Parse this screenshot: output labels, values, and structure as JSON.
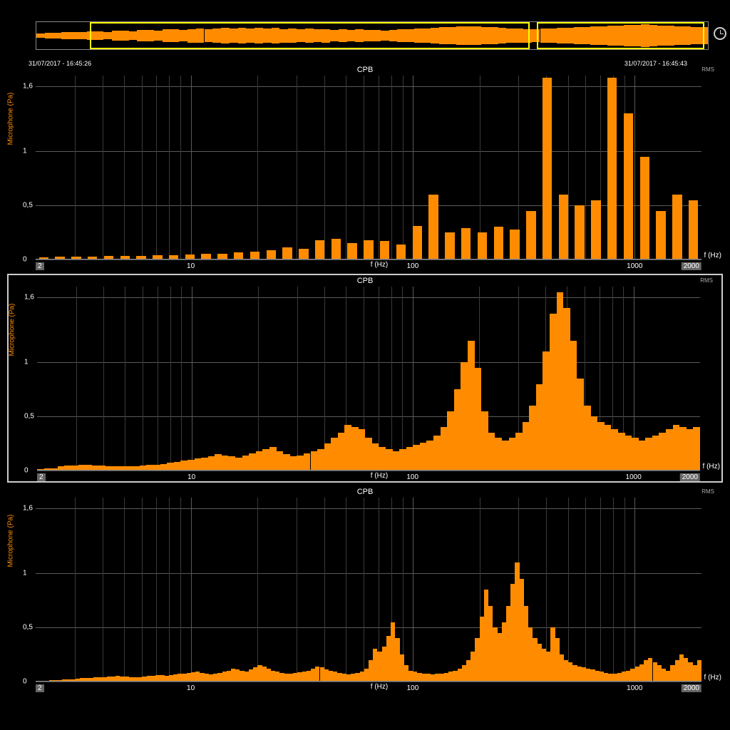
{
  "colors": {
    "background": "#000000",
    "bar": "#ff8c00",
    "grid": "#5a5a5a",
    "grid_minor": "#3a3a3a",
    "text": "#ffffff",
    "axis_label": "#ff8c00",
    "panel_border": "#888888",
    "selection": "#ffff00",
    "highlight_border": "#cccccc",
    "xtick_box": "#666666"
  },
  "timeline": {
    "timestamp_left": "31/07/2017 - 16:45:26",
    "timestamp_right": "31/07/2017 - 16:45:43",
    "selection_boxes": [
      {
        "left_pct": 8,
        "width_pct": 65.5
      },
      {
        "left_pct": 74.5,
        "width_pct": 25
      }
    ],
    "waveform_heights_pct": [
      18,
      22,
      20,
      25,
      28,
      24,
      30,
      32,
      28,
      35,
      38,
      34,
      40,
      42,
      38,
      45,
      48,
      44,
      50,
      52,
      48,
      55,
      58,
      54,
      60,
      55,
      58,
      52,
      56,
      50,
      54,
      48,
      52,
      46,
      50,
      44,
      48,
      42,
      46,
      40,
      44,
      38,
      42,
      45,
      48,
      52,
      55,
      58,
      62,
      65,
      68,
      70,
      68,
      65,
      62,
      58,
      55,
      52,
      50,
      48,
      52,
      55,
      58,
      60,
      62,
      65,
      68,
      70,
      72,
      75,
      78,
      80,
      82,
      78,
      75,
      72,
      70,
      68,
      65,
      62
    ],
    "waveform_color": "#ff8c00"
  },
  "charts": [
    {
      "type": "bar",
      "title": "CPB",
      "rms_label": "RMS",
      "ylabel": "Microphone (Pa)",
      "xlabel": "f (Hz)",
      "xlabel_right": "f (Hz)",
      "highlighted": false,
      "ylim": [
        0,
        1.7
      ],
      "yticks": [
        0,
        0.5,
        1,
        1.6
      ],
      "ytick_labels": [
        "0",
        "0,5",
        "1",
        "1,6"
      ],
      "xscale": "log",
      "xlim": [
        2,
        2000
      ],
      "xticks_major": [
        10,
        100,
        1000
      ],
      "xtick_labels_major": [
        "10",
        "100",
        "1000"
      ],
      "xticks_boxed": [
        {
          "val": 2,
          "lbl": "2",
          "side": "left"
        },
        {
          "val": 2000,
          "lbl": "2000",
          "side": "right"
        }
      ],
      "bar_gap_pct": 1.0,
      "values": [
        0.02,
        0.025,
        0.025,
        0.028,
        0.03,
        0.032,
        0.035,
        0.038,
        0.04,
        0.045,
        0.05,
        0.055,
        0.065,
        0.075,
        0.085,
        0.11,
        0.1,
        0.18,
        0.19,
        0.15,
        0.18,
        0.17,
        0.14,
        0.31,
        0.6,
        0.25,
        0.29,
        0.25,
        0.3,
        0.28,
        0.45,
        1.68,
        0.6,
        0.5,
        0.55,
        1.68,
        1.35,
        0.95,
        0.45,
        0.6,
        0.55
      ]
    },
    {
      "type": "bar",
      "title": "CPB",
      "rms_label": "RMS",
      "ylabel": "Microphone (Pa)",
      "xlabel": "f (Hz)",
      "xlabel_right": "f (Hz)",
      "highlighted": true,
      "ylim": [
        0,
        1.7
      ],
      "yticks": [
        0,
        0.5,
        1,
        1.6
      ],
      "ytick_labels": [
        "0",
        "0,5",
        "1",
        "1,6"
      ],
      "xscale": "log",
      "xlim": [
        2,
        2000
      ],
      "xticks_major": [
        10,
        100,
        1000
      ],
      "xtick_labels_major": [
        "10",
        "100",
        "1000"
      ],
      "xticks_boxed": [
        {
          "val": 2,
          "lbl": "2",
          "side": "left"
        },
        {
          "val": 2000,
          "lbl": "2000",
          "side": "right"
        }
      ],
      "bar_gap_pct": 0,
      "values": [
        0.015,
        0.018,
        0.02,
        0.04,
        0.045,
        0.048,
        0.05,
        0.05,
        0.048,
        0.045,
        0.042,
        0.04,
        0.038,
        0.04,
        0.042,
        0.045,
        0.05,
        0.055,
        0.06,
        0.07,
        0.08,
        0.09,
        0.1,
        0.11,
        0.12,
        0.13,
        0.15,
        0.14,
        0.13,
        0.12,
        0.14,
        0.16,
        0.18,
        0.2,
        0.22,
        0.18,
        0.15,
        0.13,
        0.14,
        0.16,
        0.18,
        0.2,
        0.25,
        0.3,
        0.35,
        0.42,
        0.4,
        0.38,
        0.3,
        0.25,
        0.22,
        0.2,
        0.18,
        0.2,
        0.22,
        0.24,
        0.26,
        0.28,
        0.32,
        0.4,
        0.55,
        0.75,
        1.0,
        1.2,
        0.95,
        0.55,
        0.35,
        0.3,
        0.28,
        0.3,
        0.35,
        0.45,
        0.6,
        0.8,
        1.1,
        1.45,
        1.65,
        1.5,
        1.2,
        0.85,
        0.6,
        0.5,
        0.45,
        0.42,
        0.38,
        0.35,
        0.32,
        0.3,
        0.28,
        0.3,
        0.32,
        0.35,
        0.38,
        0.42,
        0.4,
        0.38,
        0.4
      ]
    },
    {
      "type": "bar",
      "title": "CPB",
      "rms_label": "RMS",
      "ylabel": "Microphone (Pa)",
      "xlabel": "f (Hz)",
      "xlabel_right": "f (Hz)",
      "highlighted": false,
      "ylim": [
        0,
        1.7
      ],
      "yticks": [
        0,
        0.5,
        1,
        1.6
      ],
      "ytick_labels": [
        "0",
        "0,5",
        "1",
        "1,6"
      ],
      "xscale": "log",
      "xlim": [
        2,
        2000
      ],
      "xticks_major": [
        10,
        100,
        1000
      ],
      "xtick_labels_major": [
        "10",
        "100",
        "1000"
      ],
      "xticks_boxed": [
        {
          "val": 2,
          "lbl": "2",
          "side": "left"
        },
        {
          "val": 2000,
          "lbl": "2000",
          "side": "right"
        }
      ],
      "bar_gap_pct": 0,
      "values": [
        0.005,
        0.006,
        0.008,
        0.01,
        0.012,
        0.015,
        0.018,
        0.02,
        0.022,
        0.025,
        0.03,
        0.032,
        0.035,
        0.038,
        0.04,
        0.042,
        0.045,
        0.048,
        0.05,
        0.048,
        0.045,
        0.042,
        0.04,
        0.042,
        0.045,
        0.05,
        0.055,
        0.06,
        0.058,
        0.055,
        0.06,
        0.065,
        0.07,
        0.075,
        0.08,
        0.085,
        0.09,
        0.08,
        0.07,
        0.065,
        0.07,
        0.08,
        0.09,
        0.1,
        0.12,
        0.11,
        0.1,
        0.095,
        0.11,
        0.13,
        0.15,
        0.14,
        0.12,
        0.1,
        0.09,
        0.08,
        0.07,
        0.075,
        0.08,
        0.085,
        0.09,
        0.1,
        0.12,
        0.14,
        0.13,
        0.11,
        0.1,
        0.09,
        0.08,
        0.07,
        0.065,
        0.07,
        0.08,
        0.095,
        0.12,
        0.2,
        0.3,
        0.28,
        0.32,
        0.42,
        0.55,
        0.4,
        0.25,
        0.15,
        0.1,
        0.09,
        0.08,
        0.075,
        0.07,
        0.065,
        0.07,
        0.075,
        0.08,
        0.09,
        0.1,
        0.12,
        0.15,
        0.2,
        0.28,
        0.4,
        0.6,
        0.85,
        0.7,
        0.5,
        0.45,
        0.55,
        0.7,
        0.9,
        1.1,
        0.95,
        0.7,
        0.5,
        0.4,
        0.35,
        0.3,
        0.28,
        0.5,
        0.4,
        0.25,
        0.2,
        0.18,
        0.15,
        0.14,
        0.13,
        0.12,
        0.11,
        0.1,
        0.09,
        0.08,
        0.075,
        0.07,
        0.08,
        0.09,
        0.1,
        0.12,
        0.14,
        0.16,
        0.2,
        0.22,
        0.18,
        0.15,
        0.12,
        0.1,
        0.15,
        0.2,
        0.25,
        0.22,
        0.18,
        0.15,
        0.2
      ]
    }
  ],
  "log_minor_ticks": [
    2,
    3,
    4,
    5,
    6,
    7,
    8,
    9,
    20,
    30,
    40,
    50,
    60,
    70,
    80,
    90,
    200,
    300,
    400,
    500,
    600,
    700,
    800,
    900,
    2000
  ]
}
